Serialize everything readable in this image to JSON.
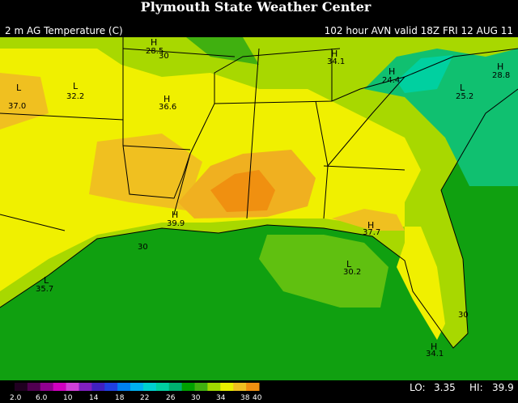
{
  "header": {
    "title": "Plymouth State Weather Center",
    "product": "2 m AG Temperature (C)",
    "valid": "102 hour AVN valid 18Z FRI 12 AUG 11"
  },
  "map_labels": [
    {
      "symbol": "L",
      "value": "37.0"
    },
    {
      "symbol": "L",
      "value": "32.2"
    },
    {
      "symbol": "H",
      "value": "28.5"
    },
    {
      "symbol": "H",
      "value": "36.6"
    },
    {
      "symbol": "H",
      "value": "34.1"
    },
    {
      "symbol": "H",
      "value": "24.4"
    },
    {
      "symbol": "L",
      "value": "25.2"
    },
    {
      "symbol": "H",
      "value": "28.8"
    },
    {
      "symbol": "H",
      "value": "39.9"
    },
    {
      "symbol": "H",
      "value": "37.7"
    },
    {
      "symbol": "L",
      "value": "30.2"
    },
    {
      "symbol": "H",
      "value": "34.1"
    },
    {
      "symbol": "L",
      "value": "35.7"
    }
  ],
  "contour_labels": [
    "30",
    "30",
    "30"
  ],
  "colorbar": {
    "labels": [
      "2.0",
      "6.0",
      "10",
      "14",
      "18",
      "22",
      "26",
      "30",
      "34",
      "38",
      "40"
    ],
    "colors": [
      "#200020",
      "#500050",
      "#900090",
      "#d000c0",
      "#d040d8",
      "#8020c0",
      "#4020c0",
      "#2040e0",
      "#0080f0",
      "#00b0f0",
      "#00d0d0",
      "#00d0a0",
      "#00b070",
      "#00a000",
      "#40b010",
      "#a0d800",
      "#e8f000",
      "#f0c020",
      "#f09010"
    ]
  },
  "footer": {
    "lo_label": "LO:",
    "lo": "3.35",
    "hi_label": "HI:",
    "hi": "39.9"
  }
}
